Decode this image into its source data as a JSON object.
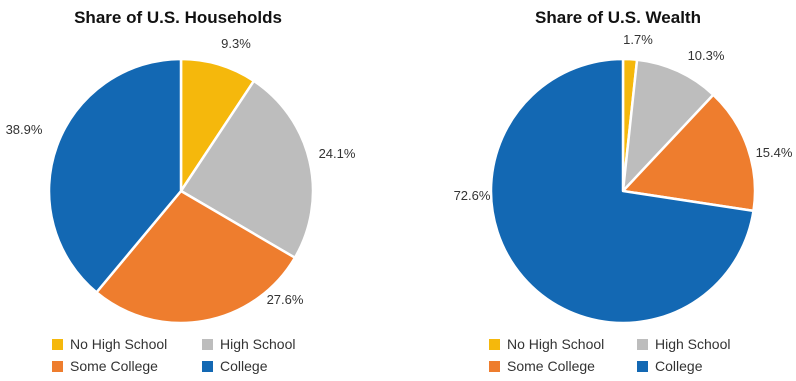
{
  "chart_data": [
    {
      "type": "pie",
      "title": "Share of U.S. Households",
      "categories": [
        "No High School",
        "High School",
        "Some College",
        "College"
      ],
      "values": [
        9.3,
        24.1,
        27.6,
        38.9
      ],
      "value_labels": [
        "9.3%",
        "24.1%",
        "27.6%",
        "38.9%"
      ],
      "colors": [
        "#F5B80C",
        "#BDBDBD",
        "#EE7D2E",
        "#1368B3"
      ],
      "start_angle_deg": 0,
      "direction": "clockwise",
      "legend_position": "bottom"
    },
    {
      "type": "pie",
      "title": "Share of U.S. Wealth",
      "categories": [
        "No High School",
        "High School",
        "Some College",
        "College"
      ],
      "values": [
        1.7,
        10.3,
        15.4,
        72.6
      ],
      "value_labels": [
        "1.7%",
        "10.3%",
        "15.4%",
        "72.6%"
      ],
      "colors": [
        "#F5B80C",
        "#BDBDBD",
        "#EE7D2E",
        "#1368B3"
      ],
      "start_angle_deg": 0,
      "direction": "clockwise",
      "legend_position": "bottom"
    }
  ]
}
